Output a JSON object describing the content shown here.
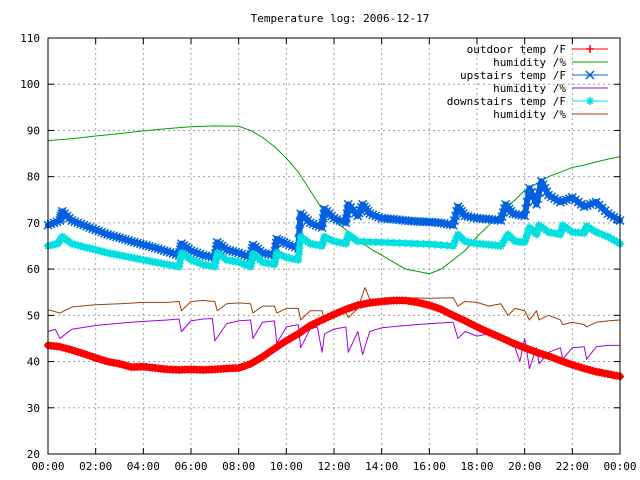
{
  "chart_data": {
    "type": "line",
    "title": "Temperature log: 2006-12-17",
    "xlabel": "",
    "ylabel": "",
    "xlim": [
      0,
      24
    ],
    "ylim": [
      20,
      110
    ],
    "grid": true,
    "legend_position": "top-right",
    "x_tick_labels": [
      "00:00",
      "02:00",
      "04:00",
      "06:00",
      "08:00",
      "10:00",
      "12:00",
      "14:00",
      "16:00",
      "18:00",
      "20:00",
      "22:00",
      "00:00"
    ],
    "y_tick_labels": [
      "20",
      "30",
      "40",
      "50",
      "60",
      "70",
      "80",
      "90",
      "100",
      "110"
    ],
    "series": [
      {
        "name": "outdoor temp /F",
        "color": "#ff0000",
        "marker": "plus",
        "x": [
          0,
          0.5,
          1,
          1.5,
          2,
          2.5,
          3,
          3.5,
          4,
          4.5,
          5,
          5.5,
          6,
          6.5,
          7,
          7.5,
          8,
          8.5,
          9,
          9.5,
          10,
          10.5,
          11,
          11.5,
          12,
          12.5,
          13,
          13.5,
          14,
          14.5,
          15,
          15.5,
          16,
          16.5,
          17,
          17.5,
          18,
          18.5,
          19,
          19.5,
          20,
          20.5,
          21,
          21.5,
          22,
          22.5,
          23,
          23.5,
          24
        ],
        "y": [
          43.5,
          43.2,
          42.5,
          41.7,
          40.8,
          40.0,
          39.5,
          38.8,
          38.9,
          38.6,
          38.3,
          38.2,
          38.3,
          38.2,
          38.3,
          38.5,
          38.6,
          39.5,
          41.0,
          42.8,
          44.5,
          46.0,
          47.8,
          49.0,
          50.2,
          51.3,
          52.2,
          52.7,
          53.0,
          53.2,
          53.2,
          52.8,
          52.2,
          51.3,
          50.0,
          48.8,
          47.5,
          46.3,
          45.2,
          44.0,
          43.0,
          42.0,
          41.2,
          40.2,
          39.3,
          38.5,
          37.8,
          37.3,
          36.8
        ]
      },
      {
        "name": "humidity /%",
        "color": "#00a000",
        "marker": "none",
        "x": [
          0,
          1,
          2,
          3,
          4,
          5,
          6,
          7,
          8,
          8.5,
          9,
          9.5,
          10,
          10.5,
          11,
          11.5,
          12,
          12.5,
          13,
          13.5,
          14,
          14.5,
          15,
          15.5,
          16,
          16.5,
          17,
          17.5,
          18,
          18.5,
          19,
          19.5,
          20,
          20.5,
          21,
          21.5,
          22,
          22.5,
          23,
          23.5,
          24
        ],
        "y": [
          87.8,
          88.2,
          88.8,
          89.3,
          89.9,
          90.4,
          90.8,
          91.0,
          90.9,
          90.0,
          88.5,
          86.5,
          84.0,
          81.0,
          77.0,
          73.0,
          70.5,
          68.5,
          66.5,
          64.5,
          63.0,
          61.5,
          60.0,
          59.5,
          59.0,
          60.0,
          62.0,
          64.0,
          67.0,
          69.5,
          72.0,
          74.5,
          77.0,
          78.5,
          80.0,
          81.0,
          82.0,
          82.5,
          83.2,
          83.8,
          84.3
        ]
      },
      {
        "name": "upstairs temp /F",
        "color": "#0060e0",
        "marker": "cross",
        "x": [
          0,
          0.5,
          0.6,
          1,
          1.5,
          2,
          2.5,
          3,
          3.5,
          4,
          4.5,
          5,
          5.5,
          5.6,
          6,
          6.5,
          7,
          7.1,
          7.5,
          8,
          8.5,
          8.6,
          9,
          9.5,
          9.6,
          10,
          10.5,
          10.6,
          11,
          11.5,
          11.6,
          12,
          12.5,
          12.6,
          13,
          13.2,
          13.5,
          14,
          14.5,
          15,
          15.5,
          16,
          16.5,
          17,
          17.2,
          17.5,
          18,
          18.5,
          19,
          19.2,
          19.5,
          20,
          20.2,
          20.5,
          20.7,
          21,
          21.5,
          22,
          22.5,
          23,
          23.5,
          24
        ],
        "y": [
          69.5,
          70.5,
          72.5,
          70.5,
          69.5,
          68.5,
          67.5,
          66.8,
          66.0,
          65.3,
          64.6,
          63.8,
          63.0,
          65.5,
          64.0,
          63.0,
          62.5,
          65.8,
          64.2,
          63.5,
          62.5,
          65.2,
          63.5,
          63.0,
          66.5,
          65.5,
          64.5,
          72.0,
          70.0,
          69.0,
          73.0,
          71.0,
          70.0,
          74.0,
          71.5,
          74.0,
          72.0,
          71.0,
          70.8,
          70.5,
          70.3,
          70.2,
          70.0,
          69.5,
          73.5,
          71.5,
          71.0,
          70.8,
          70.5,
          74.0,
          72.0,
          71.5,
          77.5,
          74.0,
          79.0,
          76.0,
          74.5,
          75.5,
          73.5,
          74.5,
          72.0,
          70.5
        ]
      },
      {
        "name": "humidity /%",
        "color": "#a000e0",
        "marker": "none",
        "x": [
          0,
          0.3,
          0.5,
          1,
          2,
          3,
          4,
          5,
          5.5,
          5.6,
          6,
          6.5,
          6.9,
          7.0,
          7.5,
          8,
          8.5,
          8.6,
          9,
          9.5,
          9.6,
          10,
          10.5,
          10.6,
          11,
          11.3,
          11.5,
          11.6,
          12,
          12.5,
          12.6,
          13,
          13.2,
          13.5,
          14,
          15,
          16,
          17,
          17.2,
          17.5,
          18,
          18.5,
          19,
          19.5,
          19.8,
          20,
          20.2,
          20.5,
          20.6,
          21,
          21.5,
          21.6,
          22,
          22.5,
          22.6,
          23,
          23.5,
          24
        ],
        "y": [
          46.5,
          47.0,
          45.0,
          47.0,
          47.8,
          48.3,
          48.7,
          49.0,
          49.2,
          46.5,
          48.8,
          49.2,
          49.3,
          44.5,
          48.2,
          48.8,
          49.0,
          45.0,
          48.5,
          48.8,
          44.0,
          47.5,
          48.0,
          43.0,
          47.0,
          47.5,
          42.0,
          46.0,
          47.0,
          47.5,
          42.0,
          46.5,
          41.5,
          46.5,
          47.3,
          47.8,
          48.2,
          48.5,
          45.0,
          46.5,
          45.5,
          46.0,
          45.0,
          44.5,
          40.0,
          45.0,
          38.5,
          43.0,
          39.5,
          42.0,
          43.0,
          40.5,
          43.0,
          43.2,
          40.5,
          43.2,
          43.5,
          43.5
        ]
      },
      {
        "name": "downstairs temp /F",
        "color": "#00e0e0",
        "marker": "star",
        "x": [
          0,
          0.4,
          0.6,
          1,
          1.5,
          2,
          2.5,
          3,
          3.5,
          4,
          4.5,
          5,
          5.5,
          5.6,
          6,
          6.5,
          7,
          7.1,
          7.5,
          8,
          8.5,
          8.6,
          9,
          9.5,
          9.6,
          10,
          10.5,
          10.6,
          11,
          11.5,
          11.6,
          12,
          12.5,
          12.6,
          13,
          14,
          15,
          16,
          17,
          17.2,
          17.5,
          18,
          18.5,
          19,
          19.3,
          19.6,
          20,
          20.2,
          20.5,
          20.6,
          21,
          21.5,
          21.6,
          22,
          22.5,
          22.6,
          23,
          23.5,
          24
        ],
        "y": [
          65.0,
          65.5,
          67.0,
          65.5,
          64.8,
          64.2,
          63.5,
          63.0,
          62.5,
          62.0,
          61.5,
          61.0,
          60.5,
          63.5,
          62.0,
          61.0,
          60.5,
          63.5,
          62.0,
          61.5,
          60.5,
          63.3,
          61.5,
          61.0,
          63.5,
          62.5,
          62.0,
          67.0,
          65.5,
          65.0,
          67.0,
          66.0,
          65.5,
          67.5,
          66.0,
          65.8,
          65.6,
          65.4,
          65.0,
          67.5,
          66.0,
          65.5,
          65.3,
          65.0,
          67.5,
          66.0,
          65.8,
          69.0,
          67.5,
          69.5,
          68.0,
          67.5,
          69.5,
          68.0,
          67.8,
          69.3,
          68.0,
          67.0,
          65.5
        ]
      },
      {
        "name": "humidity /%",
        "color": "#a04000",
        "marker": "none",
        "x": [
          0,
          0.5,
          1,
          2,
          3,
          4,
          5,
          5.5,
          5.6,
          6,
          6.5,
          7,
          7.1,
          7.5,
          8,
          8.5,
          8.6,
          9,
          9.5,
          9.6,
          10,
          10.5,
          10.6,
          11,
          11.5,
          11.6,
          12,
          12.5,
          12.6,
          13,
          13.3,
          13.5,
          14,
          15,
          16,
          17,
          17.2,
          17.5,
          18,
          18.5,
          19,
          19.3,
          19.6,
          20,
          20.2,
          20.5,
          20.6,
          21,
          21.5,
          21.6,
          22,
          22.5,
          22.6,
          23,
          23.5,
          24
        ],
        "y": [
          51.2,
          50.5,
          51.8,
          52.3,
          52.5,
          52.8,
          52.8,
          53.0,
          51.0,
          53.0,
          53.2,
          53.0,
          51.0,
          52.5,
          52.7,
          52.5,
          50.5,
          52.0,
          52.0,
          50.5,
          51.5,
          51.5,
          49.0,
          51.0,
          51.0,
          49.0,
          50.5,
          50.5,
          49.5,
          51.5,
          56.0,
          53.5,
          53.5,
          53.8,
          53.7,
          53.8,
          52.0,
          53.0,
          52.8,
          52.0,
          52.5,
          50.0,
          51.5,
          51.0,
          49.0,
          51.0,
          49.0,
          50.0,
          49.0,
          48.0,
          48.5,
          48.0,
          47.5,
          48.5,
          48.8,
          49.0
        ]
      }
    ]
  }
}
